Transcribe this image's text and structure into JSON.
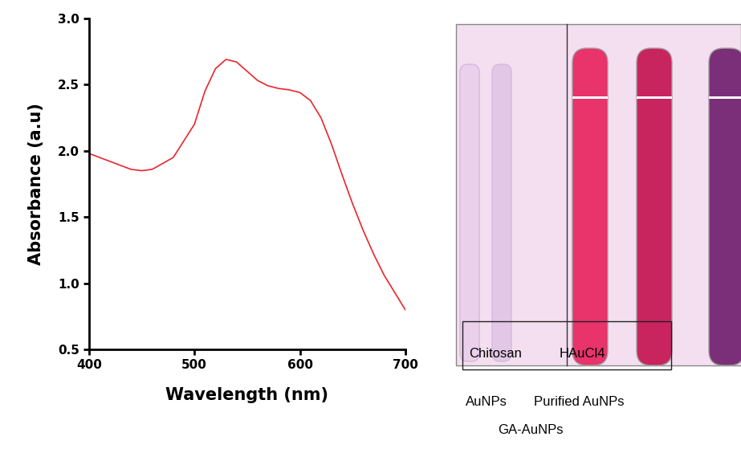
{
  "chart_data": {
    "type": "line",
    "x_label": "Wavelength (nm)",
    "y_label": "Absorbance (a.u)",
    "x": [
      400,
      420,
      440,
      450,
      460,
      480,
      500,
      510,
      520,
      530,
      540,
      550,
      560,
      570,
      580,
      590,
      600,
      610,
      620,
      630,
      640,
      650,
      660,
      670,
      680,
      690,
      700
    ],
    "values": [
      1.98,
      1.92,
      1.86,
      1.85,
      1.86,
      1.95,
      2.2,
      2.45,
      2.62,
      2.69,
      2.67,
      2.6,
      2.53,
      2.49,
      2.47,
      2.46,
      2.44,
      2.38,
      2.25,
      2.05,
      1.82,
      1.6,
      1.4,
      1.22,
      1.06,
      0.93,
      0.8
    ],
    "color": "#e8262b",
    "xlim": [
      400,
      700
    ],
    "xticks": [
      400,
      500,
      600,
      700
    ],
    "ylim": [
      0.5,
      3.0
    ],
    "yticks": [
      0.5,
      {
        "value": 1,
        "label": "1.0"
      },
      1.5,
      {
        "value": 2,
        "label": "2.0"
      },
      2.5,
      {
        "value": 3,
        "label": "3.0"
      }
    ]
  },
  "photo": {
    "box_labels": [
      "Chitosan",
      "HAuCl4"
    ],
    "captions": [
      "AuNPs",
      "Purified AuNPs",
      "GA-AuNPs"
    ]
  }
}
